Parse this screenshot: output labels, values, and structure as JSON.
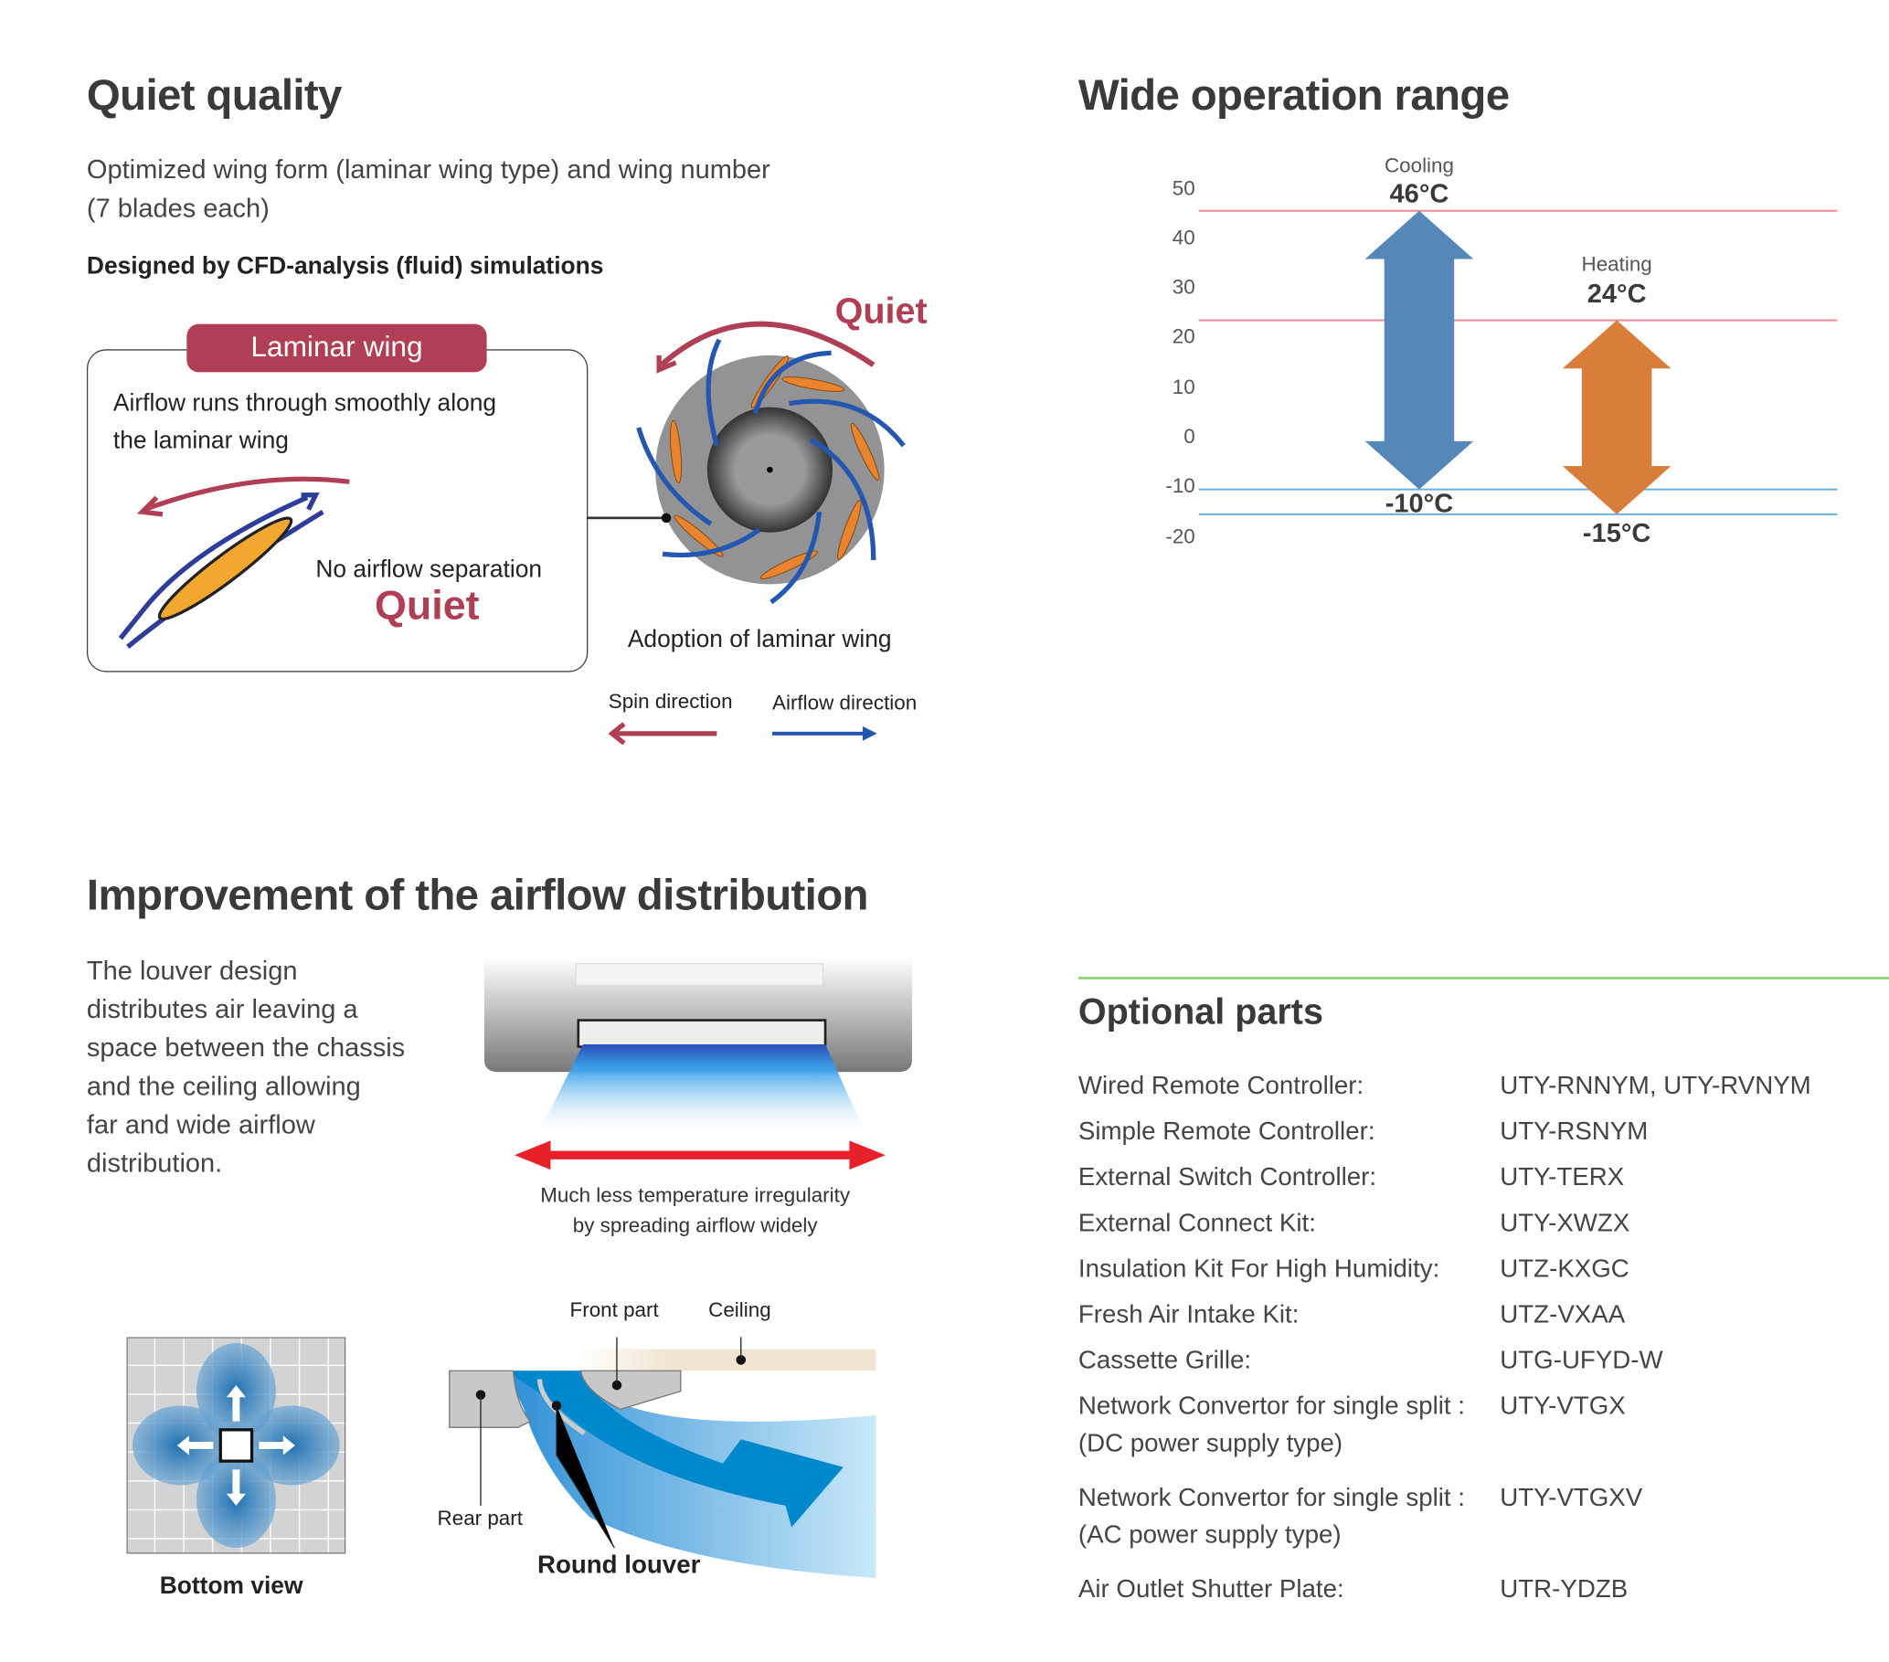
{
  "quiet": {
    "title": "Quiet quality",
    "subtitle_line1": "Optimized wing form (laminar wing type) and wing number",
    "subtitle_line2": "(7 blades each)",
    "designed_by": "Designed by CFD-analysis (fluid) simulations",
    "laminar_label": "Laminar wing",
    "box_text_line1": "Airflow runs through smoothly along",
    "box_text_line2": "the laminar wing",
    "no_separation": "No airflow separation",
    "quiet_word": "Quiet",
    "fan_quiet": "Quiet",
    "fan_caption": "Adoption of laminar wing",
    "legend_spin": "Spin direction",
    "legend_airflow": "Airflow direction"
  },
  "range": {
    "title": "Wide operation range",
    "cooling_label": "Cooling",
    "cooling_max": "46°C",
    "cooling_min": "-10°C",
    "heating_label": "Heating",
    "heating_max": "24°C",
    "heating_min": "-15°C",
    "ticks": [
      "50",
      "40",
      "30",
      "20",
      "10",
      "0",
      "-10",
      "-20"
    ]
  },
  "chart_data": {
    "type": "bar",
    "title": "Wide operation range",
    "ylim": [
      -20,
      50
    ],
    "yticks": [
      50,
      40,
      30,
      20,
      10,
      0,
      -10,
      -20
    ],
    "series": [
      {
        "name": "Cooling",
        "min": -10,
        "max": 46,
        "color": "#5588b8"
      },
      {
        "name": "Heating",
        "min": -15,
        "max": 24,
        "color": "#d87d3a"
      }
    ]
  },
  "airflow": {
    "title": "Improvement of the airflow distribution",
    "para": [
      "The louver design",
      "distributes air leaving a",
      "space between the chassis",
      "and the ceiling allowing",
      "far and wide airflow",
      "distribution."
    ],
    "caption_line1": "Much less temperature irregularity",
    "caption_line2": "by spreading airflow widely",
    "bottom_view": "Bottom view",
    "front_part": "Front part",
    "ceiling": "Ceiling",
    "rear_part": "Rear part",
    "round_louver": "Round louver"
  },
  "parts": {
    "title": "Optional parts",
    "rows": [
      {
        "label": "Wired Remote Controller:",
        "value": "UTY-RNNYM, UTY-RVNYM"
      },
      {
        "label": "Simple Remote Controller:",
        "value": "UTY-RSNYM"
      },
      {
        "label": "External Switch Controller:",
        "value": "UTY-TERX"
      },
      {
        "label": "External Connect Kit:",
        "value": "UTY-XWZX"
      },
      {
        "label": "Insulation Kit For High Humidity:",
        "value": "UTZ-KXGC"
      },
      {
        "label": "Fresh Air Intake Kit:",
        "value": "UTZ-VXAA"
      },
      {
        "label": "Cassette Grille:",
        "value": "UTG-UFYD-W"
      },
      {
        "label": "Network Convertor for single split :",
        "label2": "(DC power supply type)",
        "value": "UTY-VTGX"
      },
      {
        "label": "Network Convertor for single split :",
        "label2": "(AC power supply type)",
        "value": "UTY-VTGXV"
      },
      {
        "label": "Air Outlet Shutter Plate:",
        "value": "UTR-YDZB"
      }
    ]
  },
  "colors": {
    "accent_red": "#b03e54",
    "cool_blue": "#5588b8",
    "heat_orange": "#d87d3a",
    "divider_green": "#8cd06a"
  }
}
